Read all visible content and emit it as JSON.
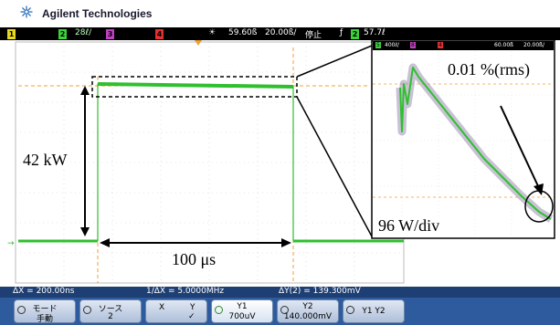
{
  "brand": {
    "name": "Agilent Technologies",
    "logo_icon": "agilent-spark-icon"
  },
  "status_bar": {
    "ch1": "1",
    "ch2": "2",
    "ch2_scale": "28ℓ/",
    "ch3": "3",
    "ch4": "4",
    "trigger_icon": "sun-trigger-icon",
    "time_offset": "59.60ß",
    "time_scale": "20.00ß/",
    "run_state": "停止",
    "edge_icon": "rising-edge-icon",
    "trig_channel": "2",
    "trig_level": "57.7ℓ"
  },
  "annotations": {
    "amplitude": "42 kW",
    "duration": "100 μs",
    "noise": "0.01 %(rms)",
    "inset_scale": "96 W/div"
  },
  "inset_status": {
    "ch": "5",
    "scale": "400ℓ/",
    "ch8": "8",
    "ch4": "4",
    "offset": "60.00ß",
    "timebase": "20.00ß/"
  },
  "measurements": {
    "dx": "ΔX = 200.00ns",
    "inv_dx": "1/ΔX = 5.0000MHz",
    "dy": "ΔY(2) = 139.300mV"
  },
  "softkeys": {
    "mode_label": "モード",
    "mode_value": "手動",
    "source_label": "ソース",
    "source_value": "2",
    "x_label": "X",
    "y_label": "Y",
    "y_check": "✓",
    "y1_label": "Y1",
    "y1_value": "700uV",
    "y2_label": "Y2",
    "y2_value": "140.000mV",
    "y1y2_label": "Y1 Y2"
  },
  "colors": {
    "trace": "#2fbf2f",
    "cursor": "#f0a030",
    "inset_noise": "#9a8fb0",
    "softkey_bar": "#2d5b9e"
  }
}
